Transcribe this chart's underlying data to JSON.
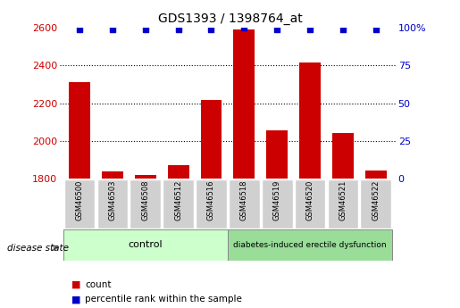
{
  "title": "GDS1393 / 1398764_at",
  "samples": [
    "GSM46500",
    "GSM46503",
    "GSM46508",
    "GSM46512",
    "GSM46516",
    "GSM46518",
    "GSM46519",
    "GSM46520",
    "GSM46521",
    "GSM46522"
  ],
  "count_values": [
    2310,
    1840,
    1820,
    1870,
    2215,
    2590,
    2055,
    2415,
    2040,
    1845
  ],
  "percentile_values": [
    99,
    99,
    99,
    99,
    99,
    100,
    99,
    99,
    99,
    99
  ],
  "groups": [
    {
      "label": "control",
      "indices": [
        0,
        4
      ],
      "color": "#ccffcc"
    },
    {
      "label": "diabetes-induced erectile dysfunction",
      "indices": [
        5,
        9
      ],
      "color": "#99dd99"
    }
  ],
  "bar_color": "#cc0000",
  "dot_color": "#0000cc",
  "ylim_left": [
    1800,
    2600
  ],
  "ylim_right": [
    0,
    100
  ],
  "yticks_left": [
    1800,
    2000,
    2200,
    2400,
    2600
  ],
  "yticks_right": [
    0,
    25,
    50,
    75,
    100
  ],
  "ylabel_left_color": "#cc0000",
  "ylabel_right_color": "#0000cc",
  "legend_count_label": "count",
  "legend_pct_label": "percentile rank within the sample",
  "disease_state_label": "disease state",
  "background_color": "#ffffff",
  "plot_bg_color": "#ffffff",
  "grid_color": "#000000",
  "xlab_bg_color": "#d0d0d0",
  "bar_baseline": 1800
}
